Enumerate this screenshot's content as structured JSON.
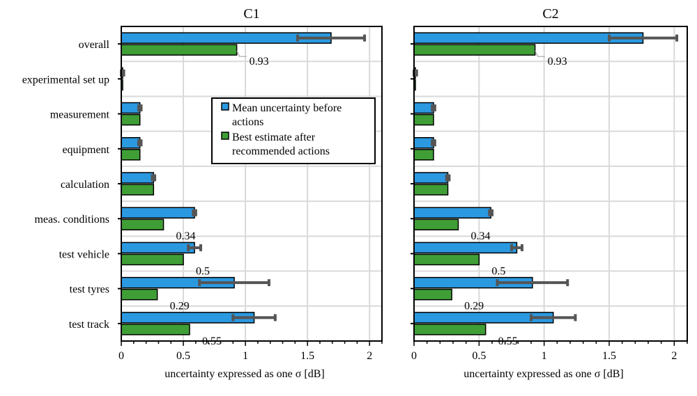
{
  "chart_data": {
    "type": "bar",
    "orientation": "horizontal",
    "shared_categories": [
      "overall",
      "experimental set up",
      "measurement",
      "equipment",
      "calculation",
      "meas. conditions",
      "test vehicle",
      "test tyres",
      "test track"
    ],
    "legend": {
      "placement": "inside left panel, upper-right",
      "entries": [
        {
          "label_lines": [
            "Mean uncertainty before",
            "actions"
          ],
          "color": "#2b99e0"
        },
        {
          "label_lines": [
            "Best estimate after",
            "recommended actions"
          ],
          "color": "#3f9e36"
        }
      ]
    },
    "colors": {
      "before": "#2b99e0",
      "after": "#3f9e36",
      "error_bar": "#555555",
      "grid": "#d9d9d9"
    },
    "panels": [
      {
        "title": "C1",
        "xlabel": "uncertainty expressed as one σ [dB]",
        "xlim": [
          0,
          2.1
        ],
        "xticks": [
          0,
          0.5,
          1,
          1.5,
          2
        ],
        "xtick_labels": [
          "0",
          "0.5",
          "1",
          "1.5",
          "2"
        ],
        "grid": true,
        "series": [
          {
            "name": "Mean uncertainty before actions",
            "values": [
              1.69,
              0.01,
              0.15,
              0.15,
              0.26,
              0.59,
              0.59,
              0.91,
              1.07
            ],
            "error": [
              0.27,
              0.01,
              0.01,
              0.01,
              0.01,
              0.01,
              0.05,
              0.28,
              0.17
            ]
          },
          {
            "name": "Best estimate after recommended actions",
            "values": [
              0.93,
              0.01,
              0.15,
              0.15,
              0.26,
              0.34,
              0.5,
              0.29,
              0.55
            ]
          }
        ],
        "data_labels": [
          {
            "category": "overall",
            "text": "0.93"
          },
          {
            "category": "meas. conditions",
            "text": "0.34"
          },
          {
            "category": "test vehicle",
            "text": "0.5"
          },
          {
            "category": "test tyres",
            "text": "0.29"
          },
          {
            "category": "test track",
            "text": "0.55"
          }
        ]
      },
      {
        "title": "C2",
        "xlabel": "uncertainty expressed as one σ [dB]",
        "xlim": [
          0,
          2.1
        ],
        "xticks": [
          0,
          0.5,
          1,
          1.5,
          2
        ],
        "xtick_labels": [
          "0",
          "0.5",
          "1",
          "1.5",
          "2"
        ],
        "grid": true,
        "series": [
          {
            "name": "Mean uncertainty before actions",
            "values": [
              1.76,
              0.01,
              0.15,
              0.15,
              0.26,
              0.59,
              0.79,
              0.91,
              1.07
            ],
            "error": [
              0.26,
              0.01,
              0.01,
              0.01,
              0.01,
              0.01,
              0.04,
              0.27,
              0.17
            ]
          },
          {
            "name": "Best estimate after recommended actions",
            "values": [
              0.93,
              0.01,
              0.15,
              0.15,
              0.26,
              0.34,
              0.5,
              0.29,
              0.55
            ]
          }
        ],
        "data_labels": [
          {
            "category": "overall",
            "text": "0.93"
          },
          {
            "category": "meas. conditions",
            "text": "0.34"
          },
          {
            "category": "test vehicle",
            "text": "0.5"
          },
          {
            "category": "test tyres",
            "text": "0.29"
          },
          {
            "category": "test track",
            "text": "0.55"
          }
        ]
      }
    ]
  }
}
